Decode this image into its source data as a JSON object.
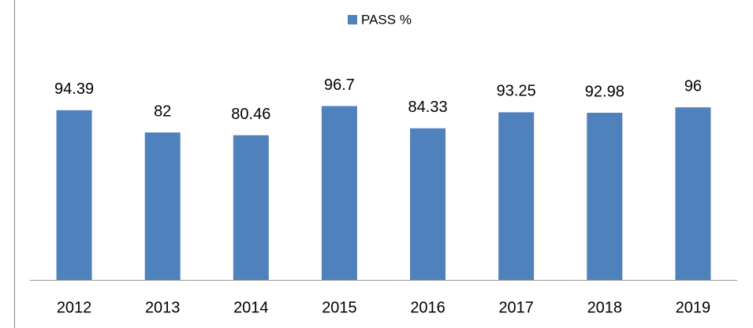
{
  "chart_data": {
    "type": "bar",
    "legend_label": "PASS %",
    "categories": [
      "2012",
      "2013",
      "2014",
      "2015",
      "2016",
      "2017",
      "2018",
      "2019"
    ],
    "values": [
      94.39,
      82,
      80.46,
      96.7,
      84.33,
      93.25,
      92.98,
      96
    ],
    "color": "#4f81bd",
    "ylim": [
      0,
      100
    ],
    "legend_position": "top"
  }
}
